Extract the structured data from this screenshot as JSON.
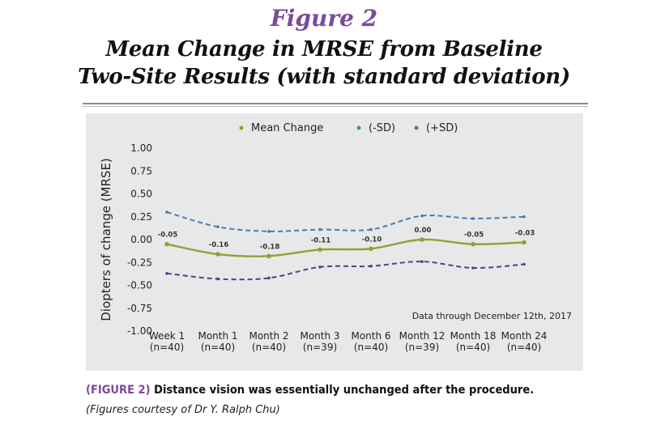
{
  "figure": {
    "number": "Figure 2",
    "title_line1": "Mean Change in MRSE from Baseline",
    "title_line2": "Two-Site Results (with standard deviation)"
  },
  "caption": {
    "label": "(FIGURE 2)",
    "text": "Distance vision was essentially unchanged after the procedure."
  },
  "credit": "(Figures courtesy of Dr Y. Ralph Chu)",
  "chart_data": {
    "type": "line",
    "title": "",
    "xlabel": "",
    "ylabel": "Diopters of change (MRSE)",
    "ylim": [
      -1.0,
      1.0
    ],
    "yticks": [
      "1.00",
      "0.75",
      "0.50",
      "0.25",
      "0.00",
      "-0.25",
      "-0.50",
      "-0.75",
      "-1.00"
    ],
    "categories": [
      {
        "line1": "Week 1",
        "line2": "(n=40)"
      },
      {
        "line1": "Month 1",
        "line2": "(n=40)"
      },
      {
        "line1": "Month 2",
        "line2": "(n=40)"
      },
      {
        "line1": "Month 3",
        "line2": "(n=39)"
      },
      {
        "line1": "Month 6",
        "line2": "(n=40)"
      },
      {
        "line1": "Month 12",
        "line2": "(n=39)"
      },
      {
        "line1": "Month 18",
        "line2": "(n=40)"
      },
      {
        "line1": "Month 24",
        "line2": "(n=40)"
      }
    ],
    "series": [
      {
        "name": "Mean Change",
        "color": "#8aa434",
        "style": "solid",
        "values": [
          -0.05,
          -0.16,
          -0.18,
          -0.11,
          -0.1,
          0.0,
          -0.05,
          -0.03
        ],
        "labels": [
          "-0.05",
          "-0.16",
          "-0.18",
          "-0.11",
          "-0.10",
          "0.00",
          "-0.05",
          "-0.03"
        ]
      },
      {
        "name": "(-SD)",
        "color": "#5b3a8a",
        "style": "dashed",
        "values": [
          -0.37,
          -0.43,
          -0.42,
          -0.3,
          -0.29,
          -0.24,
          -0.31,
          -0.27
        ]
      },
      {
        "name": "(+SD)",
        "color": "#4a7ab0",
        "style": "dashed",
        "values": [
          0.3,
          0.14,
          0.09,
          0.11,
          0.11,
          0.26,
          0.23,
          0.25
        ]
      }
    ],
    "legend": {
      "placement": "top",
      "entries": [
        {
          "label": "Mean Change",
          "color": "#8aa434"
        },
        {
          "label": "(-SD)",
          "color": "#3a9a8a"
        },
        {
          "label": "(+SD)",
          "color": "#4a7ab0"
        }
      ]
    },
    "note": "Data through December 12th, 2017",
    "grid": false
  }
}
